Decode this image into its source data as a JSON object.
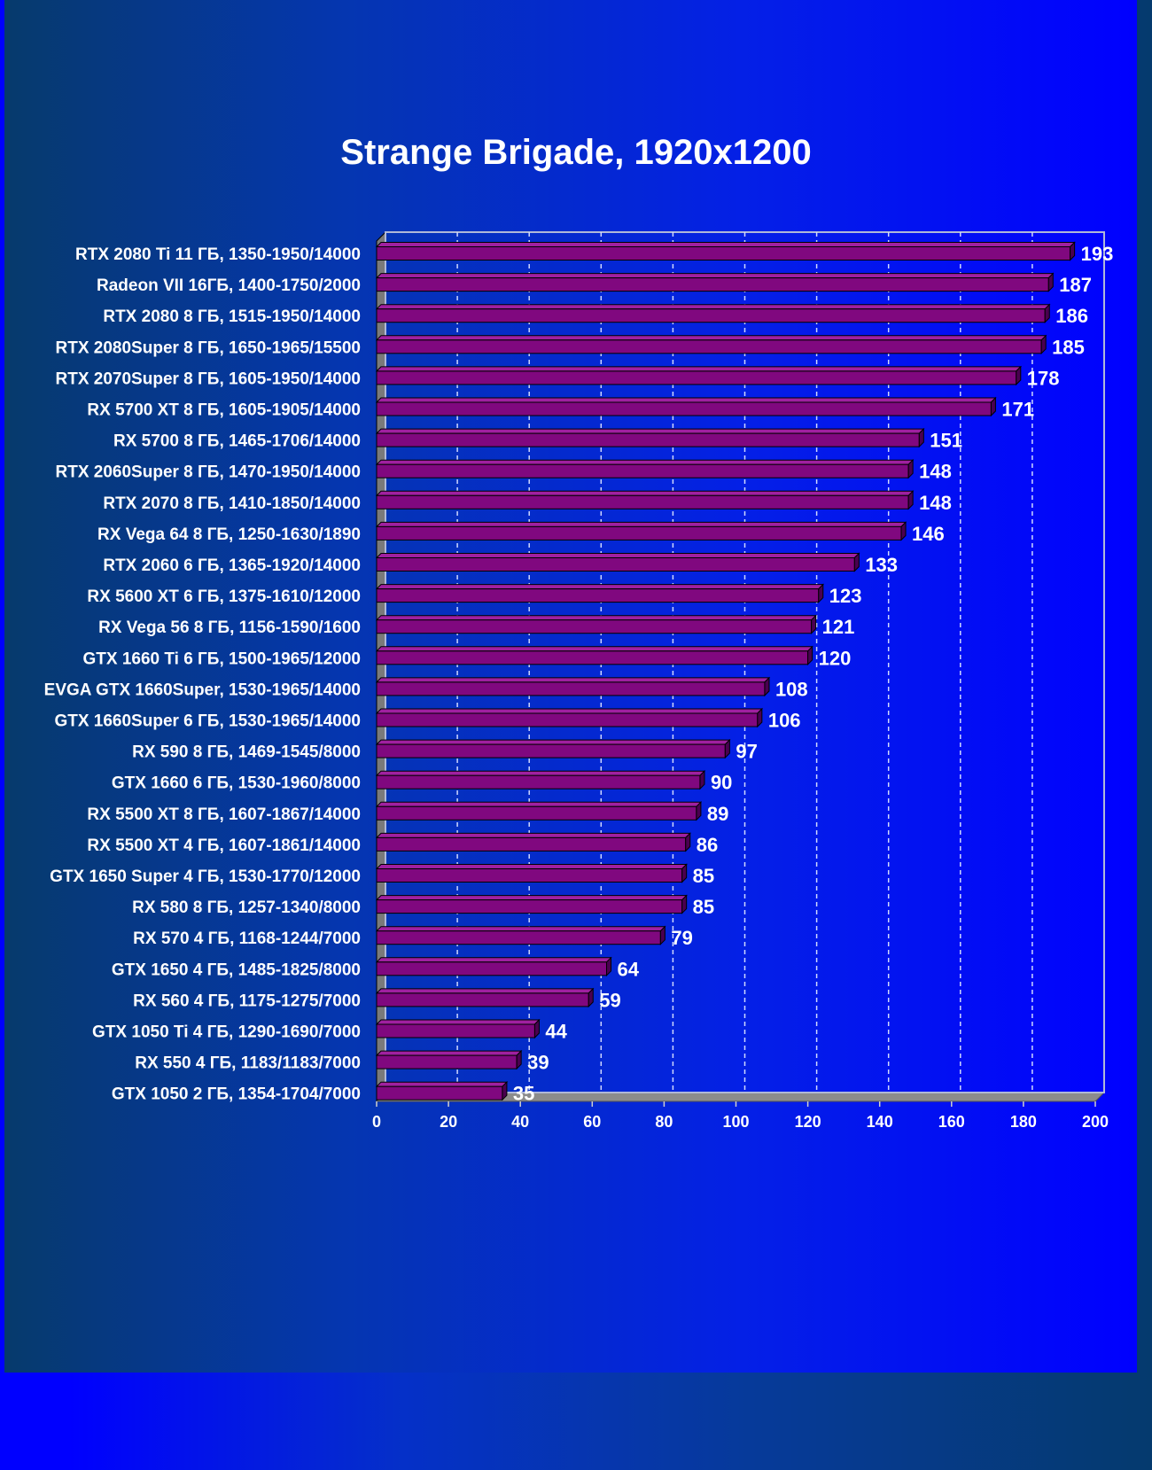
{
  "colors": {
    "bar_front": "#80087f",
    "bar_top": "#a020a0",
    "bar_side": "#4a0050",
    "grid": "#cfd8ff",
    "floor": "#8c8c8c",
    "text": "#ffffff"
  },
  "chart_data": {
    "type": "bar",
    "orientation": "horizontal",
    "title": "Strange Brigade, 1920x1200",
    "xlabel": "",
    "ylabel": "",
    "xlim": [
      0,
      200
    ],
    "xticks": [
      0,
      20,
      40,
      60,
      80,
      100,
      120,
      140,
      160,
      180,
      200
    ],
    "grid": true,
    "legend": "none",
    "categories": [
      "RTX 2080 Ti 11 ГБ, 1350-1950/14000",
      "Radeon VII  16ГБ, 1400-1750/2000",
      "RTX 2080 8 ГБ, 1515-1950/14000",
      "RTX 2080Super 8 ГБ, 1650-1965/15500",
      "RTX 2070Super 8 ГБ, 1605-1950/14000",
      "RX 5700 XT 8 ГБ, 1605-1905/14000",
      "RX 5700 8 ГБ, 1465-1706/14000",
      "RTX 2060Super 8 ГБ, 1470-1950/14000",
      "RTX 2070 8 ГБ, 1410-1850/14000",
      "RX Vega 64 8 ГБ, 1250-1630/1890",
      "RTX 2060 6 ГБ, 1365-1920/14000",
      "RX 5600 XT 6 ГБ, 1375-1610/12000",
      "RX Vega 56 8 ГБ, 1156-1590/1600",
      "GTX 1660 Ti 6 ГБ, 1500-1965/12000",
      "EVGA GTX 1660Super, 1530-1965/14000",
      "GTX 1660Super 6 ГБ, 1530-1965/14000",
      "RX 590 8 ГБ, 1469-1545/8000",
      "GTX 1660 6 ГБ, 1530-1960/8000",
      "RX 5500 XT 8 ГБ, 1607-1867/14000",
      "RX 5500 XT 4 ГБ, 1607-1861/14000",
      "GTX 1650 Super 4 ГБ, 1530-1770/12000",
      "RX 580 8 ГБ, 1257-1340/8000",
      "RX 570 4 ГБ, 1168-1244/7000",
      "GTX 1650 4 ГБ, 1485-1825/8000",
      "RX 560 4 ГБ, 1175-1275/7000",
      "GTX 1050 Ti 4 ГБ, 1290-1690/7000",
      "RX 550 4 ГБ, 1183/1183/7000",
      "GTX 1050 2 ГБ, 1354-1704/7000"
    ],
    "values": [
      193,
      187,
      186,
      185,
      178,
      171,
      151,
      148,
      148,
      146,
      133,
      123,
      121,
      120,
      108,
      106,
      97,
      90,
      89,
      86,
      85,
      85,
      79,
      64,
      59,
      44,
      39,
      35
    ]
  }
}
